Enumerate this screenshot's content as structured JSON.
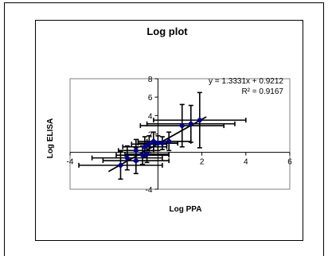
{
  "chart_data": {
    "type": "scatter",
    "title": "Log plot",
    "xlabel": "Log PPA",
    "ylabel": "Log ELISA",
    "xlim": [
      -4,
      6
    ],
    "ylim": [
      -4,
      8
    ],
    "xticks": [
      "-4",
      "2",
      "4",
      "6"
    ],
    "yticks": [
      "-4",
      "2",
      "4",
      "6",
      "8"
    ],
    "grid": false,
    "marker_color": "#00008B",
    "trendline": {
      "equation": "y = 1.3331x + 0.9212",
      "r2": "R² = 0.9167",
      "slope": 1.3331,
      "intercept": 0.9212
    },
    "points": [
      {
        "x": -1.7,
        "y": -1.4,
        "xerr": 1.9,
        "yerr": 1.5
      },
      {
        "x": -1.4,
        "y": -0.6,
        "xerr": 1.6,
        "yerr": 1.3
      },
      {
        "x": -1.0,
        "y": -0.9,
        "xerr": 1.5,
        "yerr": 1.4
      },
      {
        "x": -0.7,
        "y": -0.3,
        "xerr": 1.2,
        "yerr": 1.0
      },
      {
        "x": -0.5,
        "y": -0.2,
        "xerr": 1.0,
        "yerr": 0.9
      },
      {
        "x": -1.0,
        "y": 0.2,
        "xerr": 0.8,
        "yerr": 1.2
      },
      {
        "x": -0.6,
        "y": 0.6,
        "xerr": 1.0,
        "yerr": 1.1
      },
      {
        "x": -0.4,
        "y": 0.9,
        "xerr": 0.8,
        "yerr": 0.9
      },
      {
        "x": -0.2,
        "y": 1.2,
        "xerr": 0.7,
        "yerr": 1.0
      },
      {
        "x": 0.0,
        "y": 1.0,
        "xerr": 0.9,
        "yerr": 0.8
      },
      {
        "x": 0.2,
        "y": 1.0,
        "xerr": 0.7,
        "yerr": 0.7
      },
      {
        "x": 0.5,
        "y": 1.2,
        "xerr": 1.0,
        "yerr": 1.0
      },
      {
        "x": 1.1,
        "y": 2.9,
        "xerr": 1.9,
        "yerr": 2.3
      },
      {
        "x": 1.5,
        "y": 3.1,
        "xerr": 2.0,
        "yerr": 2.0
      },
      {
        "x": 1.9,
        "y": 3.5,
        "xerr": 2.1,
        "yerr": 3.0
      }
    ]
  }
}
